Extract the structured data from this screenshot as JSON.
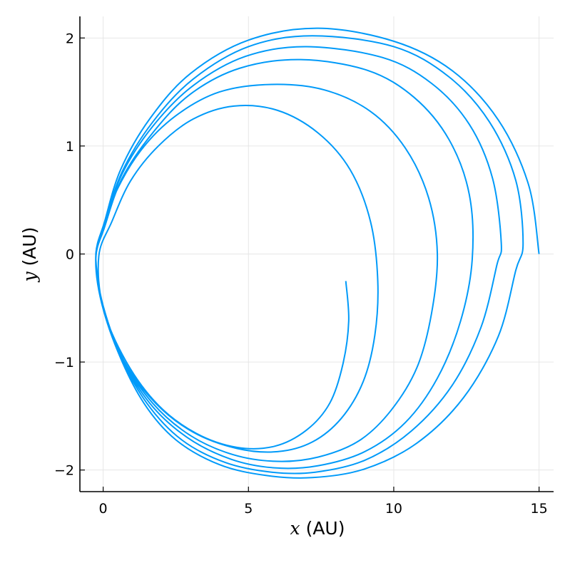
{
  "chart_data": {
    "type": "line",
    "xlabel": {
      "variable": "x",
      "unit": " (AU)"
    },
    "ylabel": {
      "variable": "y",
      "unit": " (AU)"
    },
    "xlim": [
      -0.8,
      15.5
    ],
    "ylim": [
      -2.2,
      2.2
    ],
    "xticks": [
      {
        "value": 0,
        "label": "0"
      },
      {
        "value": 5,
        "label": "5"
      },
      {
        "value": 10,
        "label": "10"
      },
      {
        "value": 15,
        "label": "15"
      }
    ],
    "yticks": [
      {
        "value": -2,
        "label": "−2"
      },
      {
        "value": -1,
        "label": "−1"
      },
      {
        "value": 0,
        "label": "0"
      },
      {
        "value": 1,
        "label": "1"
      },
      {
        "value": 2,
        "label": "2"
      }
    ],
    "grid": true,
    "legend": "none",
    "series_color": "#009af9",
    "series": [
      {
        "points": [
          [
            15.0,
            0.0
          ],
          [
            14.64,
            0.64
          ],
          [
            13.6,
            1.24
          ],
          [
            12.0,
            1.7
          ],
          [
            10.0,
            1.97
          ],
          [
            7.4,
            2.09
          ],
          [
            5.0,
            1.98
          ],
          [
            3.0,
            1.67
          ],
          [
            1.6,
            1.25
          ],
          [
            0.6,
            0.78
          ],
          [
            0.05,
            0.3
          ],
          [
            -0.25,
            0.0
          ],
          [
            -0.1,
            -0.4
          ],
          [
            0.5,
            -0.9
          ],
          [
            1.4,
            -1.38
          ],
          [
            2.5,
            -1.72
          ],
          [
            4.0,
            -1.95
          ],
          [
            5.6,
            -2.05
          ],
          [
            7.2,
            -2.07
          ],
          [
            9.0,
            -1.99
          ],
          [
            10.8,
            -1.75
          ],
          [
            12.4,
            -1.33
          ],
          [
            13.6,
            -0.76
          ],
          [
            14.2,
            -0.15
          ],
          [
            14.45,
            0.1
          ],
          [
            14.2,
            0.68
          ],
          [
            13.3,
            1.22
          ],
          [
            11.9,
            1.64
          ],
          [
            10.0,
            1.92
          ],
          [
            7.2,
            2.02
          ],
          [
            5.0,
            1.92
          ],
          [
            3.1,
            1.62
          ],
          [
            1.7,
            1.22
          ],
          [
            0.65,
            0.76
          ],
          [
            0.05,
            0.28
          ],
          [
            -0.25,
            -0.02
          ],
          [
            -0.08,
            -0.42
          ],
          [
            0.55,
            -0.92
          ],
          [
            1.5,
            -1.38
          ],
          [
            2.7,
            -1.72
          ],
          [
            4.2,
            -1.93
          ],
          [
            5.8,
            -2.02
          ],
          [
            7.3,
            -2.02
          ],
          [
            9.0,
            -1.91
          ],
          [
            10.6,
            -1.64
          ],
          [
            12.0,
            -1.22
          ],
          [
            13.0,
            -0.68
          ],
          [
            13.55,
            -0.1
          ],
          [
            13.7,
            0.1
          ],
          [
            13.4,
            0.7
          ],
          [
            12.6,
            1.2
          ],
          [
            11.3,
            1.58
          ],
          [
            9.6,
            1.82
          ],
          [
            7.0,
            1.92
          ],
          [
            4.9,
            1.83
          ],
          [
            3.1,
            1.56
          ],
          [
            1.7,
            1.18
          ],
          [
            0.65,
            0.74
          ],
          [
            0.05,
            0.27
          ],
          [
            -0.25,
            -0.03
          ],
          [
            -0.06,
            -0.44
          ],
          [
            0.6,
            -0.94
          ],
          [
            1.6,
            -1.38
          ],
          [
            2.9,
            -1.7
          ],
          [
            4.4,
            -1.9
          ],
          [
            5.9,
            -1.98
          ],
          [
            7.4,
            -1.96
          ],
          [
            9.0,
            -1.83
          ],
          [
            10.4,
            -1.56
          ],
          [
            11.5,
            -1.15
          ],
          [
            12.3,
            -0.62
          ],
          [
            12.7,
            -0.05
          ],
          [
            12.6,
            0.55
          ],
          [
            11.9,
            1.06
          ],
          [
            10.7,
            1.45
          ],
          [
            9.1,
            1.7
          ],
          [
            6.8,
            1.8
          ],
          [
            4.7,
            1.72
          ],
          [
            3.0,
            1.48
          ],
          [
            1.7,
            1.12
          ],
          [
            0.65,
            0.7
          ],
          [
            0.05,
            0.25
          ],
          [
            -0.25,
            -0.04
          ],
          [
            -0.04,
            -0.46
          ],
          [
            0.65,
            -0.96
          ],
          [
            1.7,
            -1.38
          ],
          [
            3.0,
            -1.68
          ],
          [
            4.5,
            -1.86
          ],
          [
            6.0,
            -1.92
          ],
          [
            7.4,
            -1.88
          ],
          [
            8.8,
            -1.73
          ],
          [
            9.9,
            -1.45
          ],
          [
            10.8,
            -1.05
          ],
          [
            11.3,
            -0.55
          ],
          [
            11.5,
            0.0
          ],
          [
            11.2,
            0.52
          ],
          [
            10.4,
            0.98
          ],
          [
            9.2,
            1.32
          ],
          [
            7.6,
            1.52
          ],
          [
            5.8,
            1.57
          ],
          [
            4.0,
            1.5
          ],
          [
            2.5,
            1.28
          ],
          [
            1.3,
            0.96
          ],
          [
            0.4,
            0.55
          ],
          [
            -0.1,
            0.15
          ],
          [
            -0.25,
            -0.05
          ],
          [
            0.0,
            -0.48
          ],
          [
            0.7,
            -0.98
          ],
          [
            1.8,
            -1.38
          ],
          [
            3.1,
            -1.65
          ],
          [
            4.6,
            -1.8
          ],
          [
            6.0,
            -1.83
          ],
          [
            7.2,
            -1.74
          ],
          [
            8.2,
            -1.52
          ],
          [
            8.95,
            -1.18
          ],
          [
            9.35,
            -0.75
          ],
          [
            9.45,
            -0.25
          ],
          [
            9.2,
            0.3
          ],
          [
            8.5,
            0.78
          ],
          [
            7.4,
            1.12
          ],
          [
            6.0,
            1.33
          ],
          [
            4.5,
            1.37
          ],
          [
            3.1,
            1.25
          ],
          [
            1.9,
            1.0
          ],
          [
            0.95,
            0.68
          ],
          [
            0.3,
            0.3
          ],
          [
            -0.15,
            -0.02
          ],
          [
            0.0,
            -0.5
          ],
          [
            0.8,
            -1.0
          ],
          [
            1.9,
            -1.4
          ],
          [
            3.2,
            -1.66
          ],
          [
            4.6,
            -1.79
          ],
          [
            5.9,
            -1.78
          ],
          [
            7.0,
            -1.63
          ],
          [
            7.8,
            -1.38
          ],
          [
            8.25,
            -1.02
          ],
          [
            8.45,
            -0.62
          ],
          [
            8.35,
            -0.25
          ]
        ]
      }
    ]
  }
}
